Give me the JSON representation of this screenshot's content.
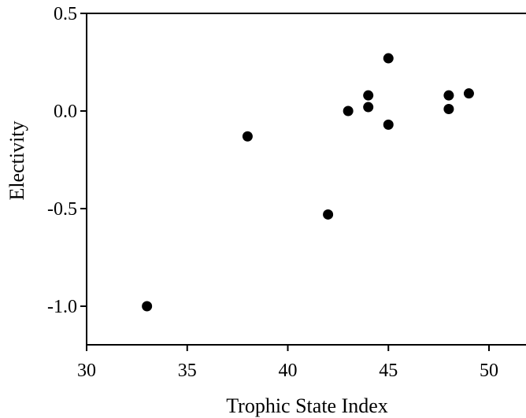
{
  "chart_data": {
    "type": "scatter",
    "title": "",
    "xlabel": "Trophic State Index",
    "ylabel": "Electivity",
    "xlim": [
      30,
      52
    ],
    "ylim": [
      -1.2,
      0.5
    ],
    "x_ticks": [
      30,
      35,
      40,
      45,
      50
    ],
    "x_tick_labels": [
      "30",
      "35",
      "40",
      "45",
      "50"
    ],
    "y_ticks": [
      0.5,
      0.0,
      -0.5,
      -1.0
    ],
    "y_tick_labels": [
      "0.5",
      "0.0",
      "-0.5",
      "-1.0"
    ],
    "grid": false,
    "legend": "none",
    "marker_color": "#000000",
    "series": [
      {
        "points": [
          {
            "x": 33,
            "y": -1.0
          },
          {
            "x": 38,
            "y": -0.13
          },
          {
            "x": 42,
            "y": -0.53
          },
          {
            "x": 43,
            "y": 0.0
          },
          {
            "x": 44,
            "y": 0.08
          },
          {
            "x": 44,
            "y": 0.02
          },
          {
            "x": 45,
            "y": 0.27
          },
          {
            "x": 45,
            "y": -0.07
          },
          {
            "x": 48,
            "y": 0.08
          },
          {
            "x": 48,
            "y": 0.01
          },
          {
            "x": 49,
            "y": 0.09
          }
        ]
      }
    ]
  }
}
